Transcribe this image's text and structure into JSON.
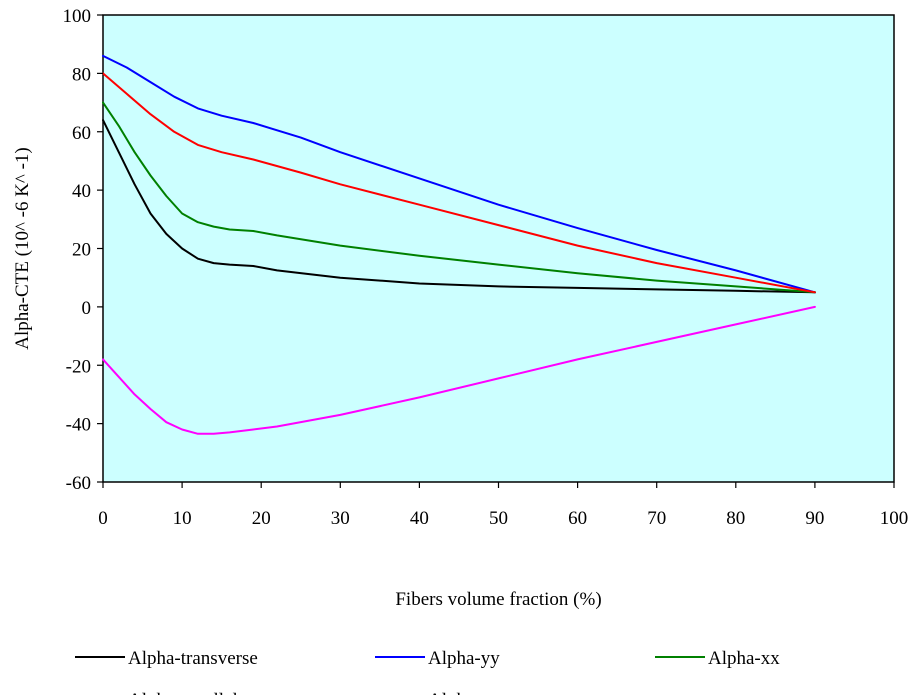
{
  "chart_data": {
    "type": "line",
    "xlabel": "Fibers volume fraction (%)",
    "ylabel": "Alpha-CTE (10^ -6 K^ -1)",
    "xlim": [
      0,
      100
    ],
    "ylim": [
      -60,
      100
    ],
    "x_ticks": [
      "0",
      "10",
      "20",
      "30",
      "40",
      "50",
      "60",
      "70",
      "80",
      "90",
      "100"
    ],
    "y_ticks": [
      "100",
      "80",
      "60",
      "40",
      "20",
      "0",
      "-20",
      "-40",
      "-60"
    ],
    "plot_background": "#ccffff",
    "grid": false,
    "legend_position": "bottom",
    "series": [
      {
        "name": "Alpha-transverse",
        "color": "#000000",
        "x": [
          0,
          2,
          4,
          6,
          8,
          10,
          12,
          14,
          16,
          19,
          22,
          30,
          40,
          50,
          60,
          70,
          80,
          90
        ],
        "y": [
          64,
          53,
          42,
          32,
          25,
          20,
          16.5,
          15,
          14.5,
          14,
          12.5,
          10,
          8,
          7,
          6.5,
          6,
          5.5,
          5
        ]
      },
      {
        "name": "Alpha-yy",
        "color": "#0000ff",
        "x": [
          0,
          3,
          6,
          9,
          12,
          15,
          19,
          25,
          30,
          40,
          50,
          60,
          70,
          80,
          90
        ],
        "y": [
          86,
          82,
          77,
          72,
          68,
          65.5,
          63,
          58,
          53,
          44,
          35,
          27,
          19.5,
          12.5,
          5
        ]
      },
      {
        "name": "Alpha-xx",
        "color": "#008000",
        "x": [
          0,
          2,
          4,
          6,
          8,
          10,
          12,
          14,
          16,
          19,
          22,
          30,
          40,
          50,
          60,
          70,
          80,
          90
        ],
        "y": [
          70,
          62,
          53,
          45,
          38,
          32,
          29,
          27.5,
          26.5,
          26,
          24.5,
          21,
          17.5,
          14.5,
          11.5,
          9,
          7,
          5
        ]
      },
      {
        "name": "Alpha-parallel",
        "color": "#ff0000",
        "x": [
          0,
          3,
          6,
          9,
          12,
          15,
          19,
          25,
          30,
          40,
          50,
          60,
          70,
          80,
          90
        ],
        "y": [
          80,
          73,
          66,
          60,
          55.5,
          53,
          50.5,
          46,
          42,
          35,
          28,
          21,
          15,
          10,
          5
        ]
      },
      {
        "name": "Alpha-xy",
        "color": "#ff00ff",
        "x": [
          0,
          2,
          4,
          6,
          8,
          10,
          12,
          14,
          16,
          19,
          22,
          30,
          40,
          50,
          60,
          70,
          80,
          90
        ],
        "y": [
          -18,
          -24,
          -30,
          -35,
          -39.5,
          -42,
          -43.5,
          -43.5,
          -43,
          -42,
          -41,
          -37,
          -31,
          -24.5,
          -18,
          -12,
          -6,
          0
        ]
      }
    ]
  }
}
